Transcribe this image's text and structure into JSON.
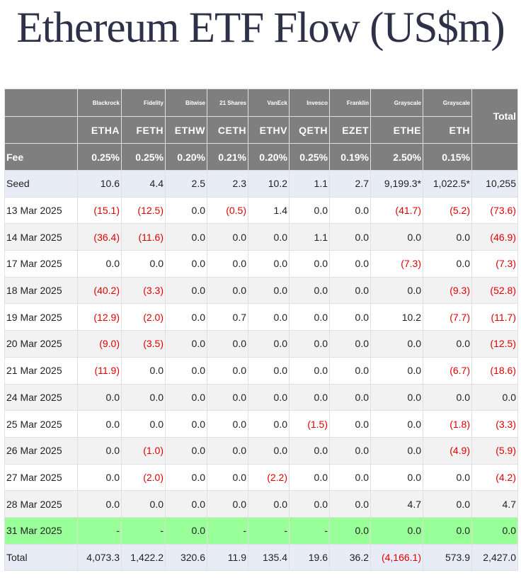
{
  "title": "Ethereum ETF Flow (US$m)",
  "colors": {
    "title": "#2e3147",
    "header_bg": "#7f7f7f",
    "negative": "#e00000",
    "highlight_row": "#99ff99",
    "seed_total_row": "#e8ecf6",
    "zebra": "#f2f2f2"
  },
  "table": {
    "issuers": [
      "Blackrock",
      "Fidelity",
      "Bitwise",
      "21 Shares",
      "VanEck",
      "Invesco",
      "Franklin",
      "Grayscale",
      "Grayscale"
    ],
    "tickers": [
      "ETHA",
      "FETH",
      "ETHW",
      "CETH",
      "ETHV",
      "QETH",
      "EZET",
      "ETHE",
      "ETH"
    ],
    "total_header": "Total",
    "fee_label": "Fee",
    "fees": [
      "0.25%",
      "0.25%",
      "0.20%",
      "0.21%",
      "0.20%",
      "0.25%",
      "0.19%",
      "2.50%",
      "0.15%"
    ],
    "rows": [
      {
        "label": "Seed",
        "values": [
          "10.6",
          "4.4",
          "2.5",
          "2.3",
          "10.2",
          "1.1",
          "2.7",
          "9,199.3*",
          "1,022.5*",
          "10,255"
        ]
      },
      {
        "label": "13 Mar 2025",
        "values": [
          "(15.1)",
          "(12.5)",
          "0.0",
          "(0.5)",
          "1.4",
          "0.0",
          "0.0",
          "(41.7)",
          "(5.2)",
          "(73.6)"
        ]
      },
      {
        "label": "14 Mar 2025",
        "values": [
          "(36.4)",
          "(11.6)",
          "0.0",
          "0.0",
          "0.0",
          "1.1",
          "0.0",
          "0.0",
          "0.0",
          "(46.9)"
        ]
      },
      {
        "label": "17 Mar 2025",
        "values": [
          "0.0",
          "0.0",
          "0.0",
          "0.0",
          "0.0",
          "0.0",
          "0.0",
          "(7.3)",
          "0.0",
          "(7.3)"
        ]
      },
      {
        "label": "18 Mar 2025",
        "values": [
          "(40.2)",
          "(3.3)",
          "0.0",
          "0.0",
          "0.0",
          "0.0",
          "0.0",
          "0.0",
          "(9.3)",
          "(52.8)"
        ]
      },
      {
        "label": "19 Mar 2025",
        "values": [
          "(12.9)",
          "(2.0)",
          "0.0",
          "0.7",
          "0.0",
          "0.0",
          "0.0",
          "10.2",
          "(7.7)",
          "(11.7)"
        ]
      },
      {
        "label": "20 Mar 2025",
        "values": [
          "(9.0)",
          "(3.5)",
          "0.0",
          "0.0",
          "0.0",
          "0.0",
          "0.0",
          "0.0",
          "0.0",
          "(12.5)"
        ]
      },
      {
        "label": "21 Mar 2025",
        "values": [
          "(11.9)",
          "0.0",
          "0.0",
          "0.0",
          "0.0",
          "0.0",
          "0.0",
          "0.0",
          "(6.7)",
          "(18.6)"
        ]
      },
      {
        "label": "24 Mar 2025",
        "values": [
          "0.0",
          "0.0",
          "0.0",
          "0.0",
          "0.0",
          "0.0",
          "0.0",
          "0.0",
          "0.0",
          "0.0"
        ]
      },
      {
        "label": "25 Mar 2025",
        "values": [
          "0.0",
          "0.0",
          "0.0",
          "0.0",
          "0.0",
          "(1.5)",
          "0.0",
          "0.0",
          "(1.8)",
          "(3.3)"
        ]
      },
      {
        "label": "26 Mar 2025",
        "values": [
          "0.0",
          "(1.0)",
          "0.0",
          "0.0",
          "0.0",
          "0.0",
          "0.0",
          "0.0",
          "(4.9)",
          "(5.9)"
        ]
      },
      {
        "label": "27 Mar 2025",
        "values": [
          "0.0",
          "(2.0)",
          "0.0",
          "0.0",
          "(2.2)",
          "0.0",
          "0.0",
          "0.0",
          "0.0",
          "(4.2)"
        ]
      },
      {
        "label": "28 Mar 2025",
        "values": [
          "0.0",
          "0.0",
          "0.0",
          "0.0",
          "0.0",
          "0.0",
          "0.0",
          "4.7",
          "0.0",
          "4.7"
        ]
      },
      {
        "label": "31 Mar 2025",
        "values": [
          "-",
          "-",
          "0.0",
          "-",
          "-",
          "-",
          "0.0",
          "0.0",
          "0.0",
          "0.0"
        ]
      },
      {
        "label": "Total",
        "values": [
          "4,073.3",
          "1,422.2",
          "320.6",
          "11.9",
          "135.4",
          "19.6",
          "36.2",
          "(4,166.1)",
          "573.9",
          "2,427.0"
        ]
      }
    ]
  }
}
